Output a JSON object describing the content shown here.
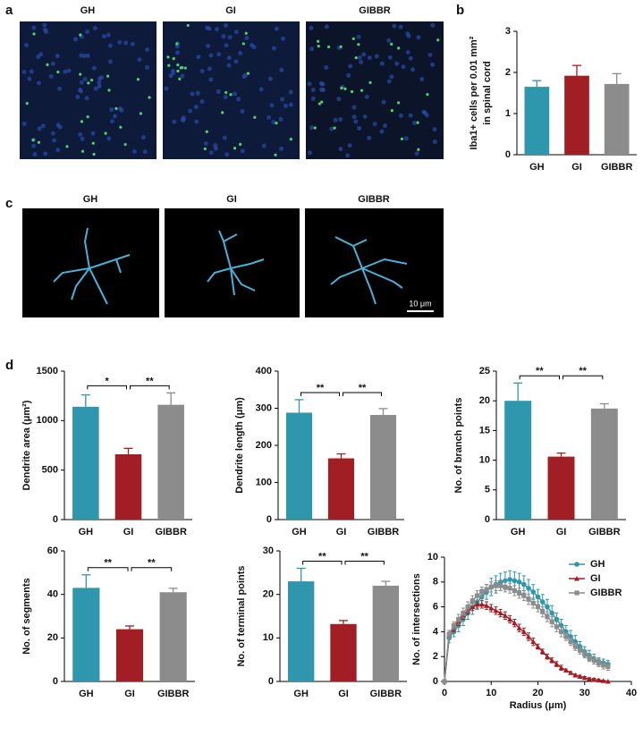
{
  "panel_labels": [
    "a",
    "b",
    "c",
    "d"
  ],
  "image_titles_a": [
    "GH",
    "GI",
    "GIBBR"
  ],
  "image_titles_c": [
    "GH",
    "GI",
    "GIBBR"
  ],
  "scale_bar": "10 μm",
  "chart_data": [
    {
      "type": "bar",
      "y_label": [
        "Iba1+ cells per 0.01 mm²",
        "in spinal cord"
      ],
      "categories": [
        "GH",
        "GI",
        "GIBBR"
      ],
      "values": [
        1.65,
        1.92,
        1.72
      ],
      "errors": [
        0.15,
        0.25,
        0.25
      ],
      "colors": [
        "#2e96ad",
        "#a11f24",
        "#8c8c8c"
      ],
      "ylim": [
        0,
        3
      ],
      "yticks": [
        0,
        1,
        2,
        3
      ]
    },
    {
      "type": "bar",
      "y_label": "Dendrite area (μm²)",
      "categories": [
        "GH",
        "GI",
        "GIBBR"
      ],
      "values": [
        1140,
        660,
        1160
      ],
      "errors": [
        120,
        60,
        120
      ],
      "colors": [
        "#2e96ad",
        "#a11f24",
        "#8c8c8c"
      ],
      "ylim": [
        0,
        1500
      ],
      "yticks": [
        0,
        500,
        1000,
        1500
      ],
      "annotations": [
        "*",
        "**"
      ]
    },
    {
      "type": "bar",
      "y_label": "Dendrite length (μm)",
      "categories": [
        "GH",
        "GI",
        "GIBBR"
      ],
      "values": [
        288,
        165,
        282
      ],
      "errors": [
        35,
        12,
        17
      ],
      "colors": [
        "#2e96ad",
        "#a11f24",
        "#8c8c8c"
      ],
      "ylim": [
        0,
        400
      ],
      "yticks": [
        0,
        100,
        200,
        300,
        400
      ],
      "annotations": [
        "**",
        "**"
      ]
    },
    {
      "type": "bar",
      "y_label": "No. of branch points",
      "categories": [
        "GH",
        "GI",
        "GIBBR"
      ],
      "values": [
        20,
        10.6,
        18.7
      ],
      "errors": [
        3,
        0.6,
        0.8
      ],
      "colors": [
        "#2e96ad",
        "#a11f24",
        "#8c8c8c"
      ],
      "ylim": [
        0,
        25
      ],
      "yticks": [
        0,
        5,
        10,
        15,
        20,
        25
      ],
      "annotations": [
        "**",
        "**"
      ]
    },
    {
      "type": "bar",
      "y_label": "No. of segments",
      "categories": [
        "GH",
        "GI",
        "GIBBR"
      ],
      "values": [
        43,
        24,
        41
      ],
      "errors": [
        6,
        1.5,
        1.8
      ],
      "colors": [
        "#2e96ad",
        "#a11f24",
        "#8c8c8c"
      ],
      "ylim": [
        0,
        60
      ],
      "yticks": [
        0,
        20,
        40,
        60
      ],
      "annotations": [
        "**",
        "**"
      ]
    },
    {
      "type": "bar",
      "y_label": "No. of terminal points",
      "categories": [
        "GH",
        "GI",
        "GIBBR"
      ],
      "values": [
        23,
        13.2,
        22
      ],
      "errors": [
        3,
        0.8,
        1
      ],
      "colors": [
        "#2e96ad",
        "#a11f24",
        "#8c8c8c"
      ],
      "ylim": [
        0,
        30
      ],
      "yticks": [
        0,
        10,
        20,
        30
      ],
      "annotations": [
        "**",
        "**"
      ]
    },
    {
      "type": "line",
      "x_label": "Radius (μm)",
      "y_label": "No. of intersections",
      "x": [
        0,
        1,
        2,
        3,
        4,
        5,
        6,
        7,
        8,
        9,
        10,
        11,
        12,
        13,
        14,
        15,
        16,
        17,
        18,
        19,
        20,
        21,
        22,
        23,
        24,
        25,
        26,
        27,
        28,
        29,
        30,
        31,
        32,
        33,
        34,
        35
      ],
      "series": [
        {
          "name": "GH",
          "color": "#2e96ad",
          "marker": "circle",
          "values": [
            0,
            3.5,
            4,
            4.5,
            5,
            5.5,
            6,
            6.4,
            6.8,
            7.2,
            7.6,
            7.8,
            8,
            8.1,
            8.2,
            8.1,
            8,
            7.8,
            7.5,
            7.2,
            6.8,
            6.4,
            6,
            5.5,
            5,
            4.5,
            4,
            3.6,
            3.2,
            2.8,
            2.4,
            2.1,
            1.8,
            1.6,
            1.5,
            1.4
          ],
          "errors": [
            0,
            0.4,
            0.4,
            0.5,
            0.5,
            0.5,
            0.6,
            0.6,
            0.6,
            0.6,
            0.7,
            0.7,
            0.7,
            0.7,
            0.7,
            0.7,
            0.7,
            0.7,
            0.7,
            0.6,
            0.6,
            0.6,
            0.6,
            0.6,
            0.5,
            0.5,
            0.5,
            0.5,
            0.5,
            0.4,
            0.4,
            0.4,
            0.4,
            0.3,
            0.3,
            0.3
          ]
        },
        {
          "name": "GI",
          "color": "#a11f24",
          "marker": "triangle",
          "values": [
            0,
            3.8,
            4.3,
            4.8,
            5.3,
            5.7,
            6,
            6.2,
            6.2,
            6.1,
            5.9,
            5.7,
            5.5,
            5.3,
            5,
            4.7,
            4.3,
            4,
            3.6,
            3.2,
            2.8,
            2.4,
            2,
            1.7,
            1.4,
            1.1,
            0.9,
            0.7,
            0.5,
            0.4,
            0.3,
            0.2,
            0.15,
            0.1,
            0.05,
            0
          ],
          "errors": [
            0,
            0.3,
            0.3,
            0.3,
            0.3,
            0.3,
            0.3,
            0.3,
            0.3,
            0.3,
            0.3,
            0.3,
            0.3,
            0.3,
            0.3,
            0.3,
            0.3,
            0.3,
            0.3,
            0.3,
            0.2,
            0.2,
            0.2,
            0.2,
            0.2,
            0.2,
            0.1,
            0.1,
            0.1,
            0.1,
            0.1,
            0.1,
            0.1,
            0.1,
            0.05,
            0
          ]
        },
        {
          "name": "GIBBR",
          "color": "#8c8c8c",
          "marker": "square",
          "values": [
            0,
            3.8,
            4.5,
            5,
            5.5,
            6,
            6.5,
            6.9,
            7.2,
            7.4,
            7.6,
            7.7,
            7.7,
            7.6,
            7.5,
            7.3,
            7.1,
            6.9,
            6.6,
            6.3,
            6,
            5.6,
            5.2,
            4.8,
            4.4,
            4,
            3.6,
            3.2,
            2.8,
            2.5,
            2.2,
            1.9,
            1.7,
            1.5,
            1.3,
            1.2
          ],
          "errors": [
            0,
            0.3,
            0.3,
            0.4,
            0.4,
            0.4,
            0.4,
            0.4,
            0.4,
            0.4,
            0.4,
            0.4,
            0.4,
            0.4,
            0.4,
            0.4,
            0.4,
            0.4,
            0.4,
            0.4,
            0.4,
            0.4,
            0.4,
            0.4,
            0.4,
            0.4,
            0.3,
            0.3,
            0.3,
            0.3,
            0.3,
            0.3,
            0.3,
            0.3,
            0.3,
            0.3
          ]
        }
      ],
      "xlim": [
        0,
        40
      ],
      "xticks": [
        0,
        10,
        20,
        30,
        40
      ],
      "ylim": [
        0,
        10
      ],
      "yticks": [
        0,
        2,
        4,
        6,
        8,
        10
      ],
      "legend": "upper right"
    }
  ]
}
